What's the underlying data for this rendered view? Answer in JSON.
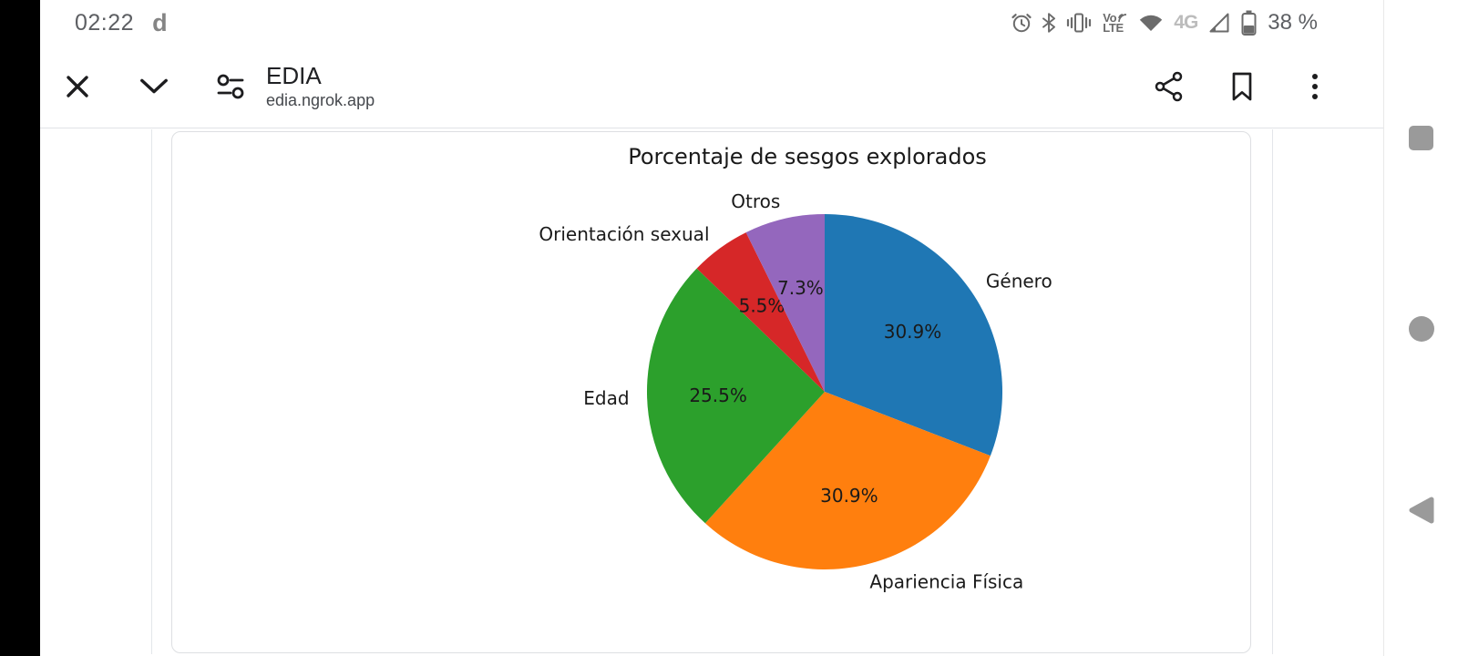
{
  "status_bar": {
    "time": "02:22",
    "notification_letter": "d",
    "volte_top": "Vo",
    "volte_bottom": "LTE",
    "network_4g": "4G",
    "battery_text": "38 %"
  },
  "browser_bar": {
    "page_title": "EDIA",
    "page_url": "edia.ngrok.app"
  },
  "chart_data": {
    "type": "pie",
    "title": "Porcentaje de sesgos explorados",
    "categories": [
      "Género",
      "Apariencia Física",
      "Edad",
      "Orientación sexual",
      "Otros"
    ],
    "values": [
      30.9,
      30.9,
      25.5,
      5.5,
      7.3
    ],
    "percent_labels": [
      "30.9%",
      "30.9%",
      "25.5%",
      "5.5%",
      "7.3%"
    ],
    "colors": [
      "#1f77b4",
      "#ff7f0e",
      "#2ca02c",
      "#d62728",
      "#9467bd"
    ],
    "start_angle_deg": 90,
    "direction": "clockwise",
    "label_distance": 1.1,
    "pct_distance": 0.6,
    "legend": false
  }
}
